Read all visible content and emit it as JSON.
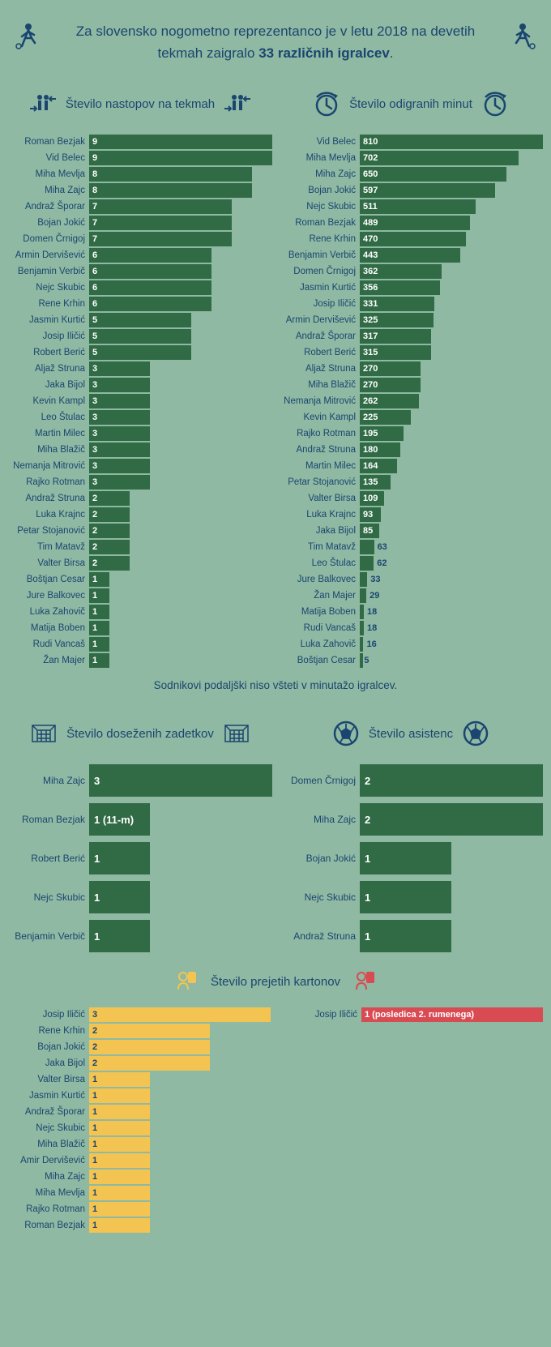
{
  "header": {
    "line1": "Za slovensko nogometno reprezentanco je v letu 2018 na devetih",
    "line2_prefix": "tekmah zaigralo ",
    "line2_bold": "33 različnih igralcev",
    "line2_suffix": "."
  },
  "colors": {
    "bg": "#8fb9a2",
    "bar_green": "#306b46",
    "bar_yellow": "#f3c452",
    "bar_red": "#d94b52",
    "text": "#1a4570",
    "bar_text": "#ffffff"
  },
  "appearances": {
    "title": "Število nastopov na tekmah",
    "max": 9,
    "data": [
      {
        "name": "Roman Bezjak",
        "value": 9
      },
      {
        "name": "Vid Belec",
        "value": 9
      },
      {
        "name": "Miha Mevlja",
        "value": 8
      },
      {
        "name": "Miha Zajc",
        "value": 8
      },
      {
        "name": "Andraž Šporar",
        "value": 7
      },
      {
        "name": "Bojan Jokić",
        "value": 7
      },
      {
        "name": "Domen Črnigoj",
        "value": 7
      },
      {
        "name": "Armin Dervišević",
        "value": 6
      },
      {
        "name": "Benjamin Verbič",
        "value": 6
      },
      {
        "name": "Nejc Skubic",
        "value": 6
      },
      {
        "name": "Rene Krhin",
        "value": 6
      },
      {
        "name": "Jasmin Kurtić",
        "value": 5
      },
      {
        "name": "Josip Iličić",
        "value": 5
      },
      {
        "name": "Robert Berić",
        "value": 5
      },
      {
        "name": "Aljaž Struna",
        "value": 3
      },
      {
        "name": "Jaka Bijol",
        "value": 3
      },
      {
        "name": "Kevin Kampl",
        "value": 3
      },
      {
        "name": "Leo Štulac",
        "value": 3
      },
      {
        "name": "Martin Milec",
        "value": 3
      },
      {
        "name": "Miha Blažič",
        "value": 3
      },
      {
        "name": "Nemanja Mitrović",
        "value": 3
      },
      {
        "name": "Rajko Rotman",
        "value": 3
      },
      {
        "name": "Andraž Struna",
        "value": 2
      },
      {
        "name": "Luka Krajnc",
        "value": 2
      },
      {
        "name": "Petar Stojanović",
        "value": 2
      },
      {
        "name": "Tim Matavž",
        "value": 2
      },
      {
        "name": "Valter Birsa",
        "value": 2
      },
      {
        "name": "Boštjan Cesar",
        "value": 1
      },
      {
        "name": "Jure Balkovec",
        "value": 1
      },
      {
        "name": "Luka Zahovič",
        "value": 1
      },
      {
        "name": "Matija Boben",
        "value": 1
      },
      {
        "name": "Rudi Vancaš",
        "value": 1
      },
      {
        "name": "Žan Majer",
        "value": 1
      }
    ]
  },
  "minutes": {
    "title": "Število odigranih minut",
    "max": 810,
    "outside_threshold": 80,
    "data": [
      {
        "name": "Vid Belec",
        "value": 810
      },
      {
        "name": "Miha Mevlja",
        "value": 702
      },
      {
        "name": "Miha Zajc",
        "value": 650
      },
      {
        "name": "Bojan Jokić",
        "value": 597
      },
      {
        "name": "Nejc Skubic",
        "value": 511
      },
      {
        "name": "Roman Bezjak",
        "value": 489
      },
      {
        "name": "Rene Krhin",
        "value": 470
      },
      {
        "name": "Benjamin Verbič",
        "value": 443
      },
      {
        "name": "Domen Črnigoj",
        "value": 362
      },
      {
        "name": "Jasmin Kurtić",
        "value": 356
      },
      {
        "name": "Josip Iličić",
        "value": 331
      },
      {
        "name": "Armin Dervišević",
        "value": 325
      },
      {
        "name": "Andraž Šporar",
        "value": 317
      },
      {
        "name": "Robert Berić",
        "value": 315
      },
      {
        "name": "Aljaž Struna",
        "value": 270
      },
      {
        "name": "Miha Blažič",
        "value": 270
      },
      {
        "name": "Nemanja Mitrović",
        "value": 262
      },
      {
        "name": "Kevin Kampl",
        "value": 225
      },
      {
        "name": "Rajko Rotman",
        "value": 195
      },
      {
        "name": "Andraž Struna",
        "value": 180
      },
      {
        "name": "Martin Milec",
        "value": 164
      },
      {
        "name": "Petar Stojanović",
        "value": 135
      },
      {
        "name": "Valter Birsa",
        "value": 109
      },
      {
        "name": "Luka Krajnc",
        "value": 93
      },
      {
        "name": "Jaka Bijol",
        "value": 85
      },
      {
        "name": "Tim Matavž",
        "value": 63
      },
      {
        "name": "Leo Štulac",
        "value": 62
      },
      {
        "name": "Jure Balkovec",
        "value": 33
      },
      {
        "name": "Žan Majer",
        "value": 29
      },
      {
        "name": "Matija Boben",
        "value": 18
      },
      {
        "name": "Rudi Vancaš",
        "value": 18
      },
      {
        "name": "Luka Zahovič",
        "value": 16
      },
      {
        "name": "Boštjan Cesar",
        "value": 5
      }
    ]
  },
  "footnote": "Sodnikovi podaljški niso všteti v minutažo igralcev.",
  "goals": {
    "title": "Število doseženih zadetkov",
    "max": 3,
    "data": [
      {
        "name": "Miha Zajc",
        "value": 3,
        "label": "3"
      },
      {
        "name": "Roman Bezjak",
        "value": 1,
        "label": "1 (11-m)"
      },
      {
        "name": "Robert Berić",
        "value": 1,
        "label": "1"
      },
      {
        "name": "Nejc Skubic",
        "value": 1,
        "label": "1"
      },
      {
        "name": "Benjamin Verbič",
        "value": 1,
        "label": "1"
      }
    ]
  },
  "assists": {
    "title": "Število asistenc",
    "max": 2,
    "data": [
      {
        "name": "Domen Črnigoj",
        "value": 2,
        "label": "2"
      },
      {
        "name": "Miha Zajc",
        "value": 2,
        "label": "2"
      },
      {
        "name": "Bojan Jokić",
        "value": 1,
        "label": "1"
      },
      {
        "name": "Nejc Skubic",
        "value": 1,
        "label": "1"
      },
      {
        "name": "Andraž Struna",
        "value": 1,
        "label": "1"
      }
    ]
  },
  "cards": {
    "title": "Število prejetih kartonov",
    "yellow": {
      "max": 3,
      "data": [
        {
          "name": "Josip Iličić",
          "value": 3
        },
        {
          "name": "Rene Krhin",
          "value": 2
        },
        {
          "name": "Bojan Jokić",
          "value": 2
        },
        {
          "name": "Jaka Bijol",
          "value": 2
        },
        {
          "name": "Valter Birsa",
          "value": 1
        },
        {
          "name": "Jasmin Kurtić",
          "value": 1
        },
        {
          "name": "Andraž Šporar",
          "value": 1
        },
        {
          "name": "Nejc Skubic",
          "value": 1
        },
        {
          "name": "Miha Blažič",
          "value": 1
        },
        {
          "name": "Amir Dervišević",
          "value": 1
        },
        {
          "name": "Miha Zajc",
          "value": 1
        },
        {
          "name": "Miha Mevlja",
          "value": 1
        },
        {
          "name": "Rajko Rotman",
          "value": 1
        },
        {
          "name": "Roman Bezjak",
          "value": 1
        }
      ]
    },
    "red": {
      "data": [
        {
          "name": "Josip Iličić",
          "label": "1 (posledica 2. rumenega)"
        }
      ]
    }
  }
}
